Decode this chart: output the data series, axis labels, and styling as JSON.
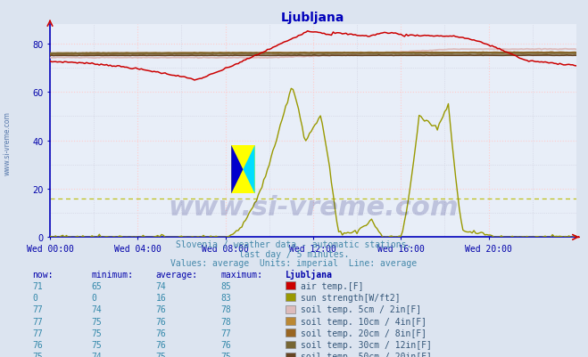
{
  "title": "Ljubljana",
  "subtitle1": "Slovenia / weather data - automatic stations.",
  "subtitle2": "last day / 5 minutes.",
  "subtitle3": "Values: average  Units: imperial  Line: average",
  "watermark": "www.si-vreme.com",
  "bg_color": "#dce4f0",
  "plot_bg_color": "#e8eef8",
  "grid_color_major": "#ffcccc",
  "grid_color_minor": "#ccccdd",
  "yticks": [
    0,
    20,
    40,
    60,
    80
  ],
  "xtick_labels": [
    "Wed 00:00",
    "Wed 04:00",
    "Wed 08:00",
    "Wed 12:00",
    "Wed 16:00",
    "Wed 20:00"
  ],
  "xtick_positions": [
    0,
    48,
    96,
    144,
    192,
    240
  ],
  "table_headers": [
    "now:",
    "minimum:",
    "average:",
    "maximum:",
    "Ljubljana"
  ],
  "table_rows": [
    [
      "71",
      "65",
      "74",
      "85",
      "air temp.[F]",
      "#cc0000"
    ],
    [
      "0",
      "0",
      "16",
      "83",
      "sun strength[W/ft2]",
      "#999900"
    ],
    [
      "77",
      "74",
      "76",
      "78",
      "soil temp. 5cm / 2in[F]",
      "#ddbbbb"
    ],
    [
      "77",
      "75",
      "76",
      "78",
      "soil temp. 10cm / 4in[F]",
      "#bb8833"
    ],
    [
      "77",
      "75",
      "76",
      "77",
      "soil temp. 20cm / 8in[F]",
      "#996622"
    ],
    [
      "76",
      "75",
      "76",
      "76",
      "soil temp. 30cm / 12in[F]",
      "#776633"
    ],
    [
      "75",
      "74",
      "75",
      "75",
      "soil temp. 50cm / 20in[F]",
      "#664422"
    ]
  ],
  "air_temp_color": "#cc0000",
  "sun_color": "#999900",
  "soil5_color": "#ddbbbb",
  "soil10_color": "#bb8833",
  "soil20_color": "#996622",
  "soil30_color": "#776633",
  "soil50_color": "#664422",
  "axis_color": "#0000bb",
  "tick_color": "#0000aa",
  "text_color": "#4488aa"
}
